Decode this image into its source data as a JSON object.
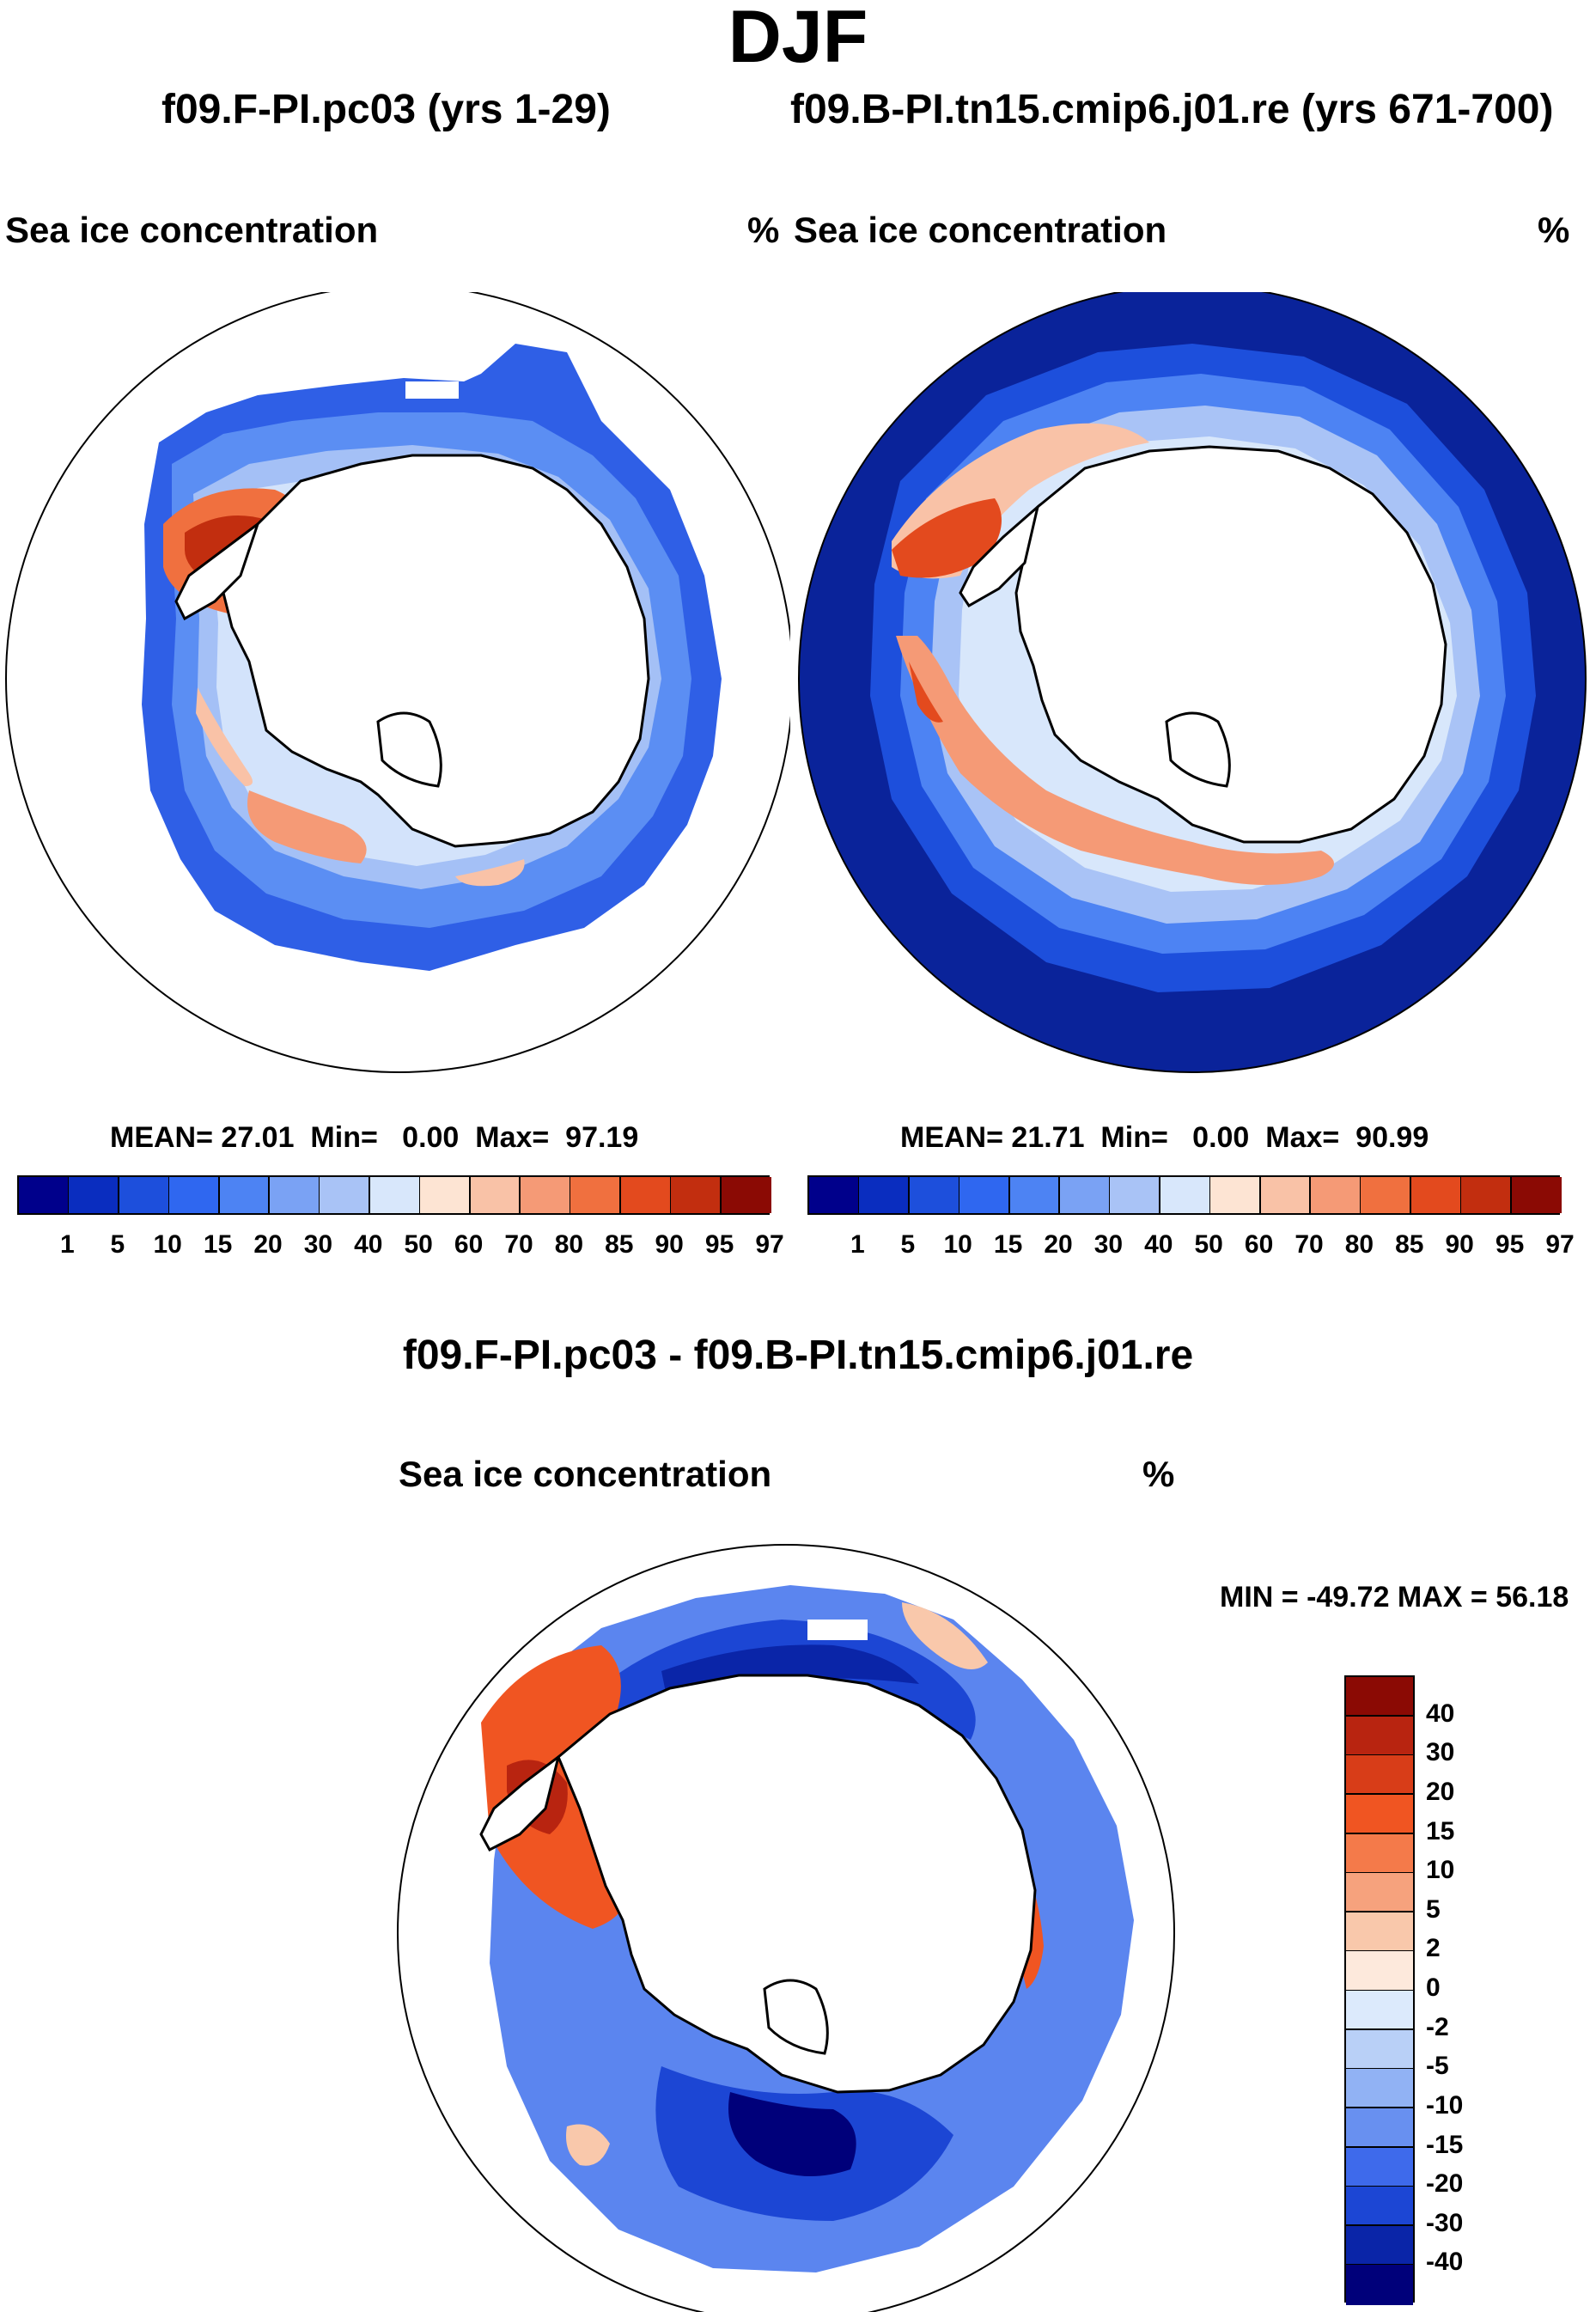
{
  "page": {
    "title": "DJF"
  },
  "panels": {
    "left": {
      "case_title": "f09.F-PI.pc03 (yrs 1-29)",
      "variable": "Sea ice concentration",
      "units": "%",
      "mean_label": "MEAN=",
      "mean": "27.01",
      "min_label": "Min=",
      "min": "0.00",
      "max_label": "Max=",
      "max": "97.19"
    },
    "right": {
      "case_title": "f09.B-PI.tn15.cmip6.j01.re (yrs 671-700)",
      "variable": "Sea ice concentration",
      "units": "%",
      "mean_label": "MEAN=",
      "mean": "21.71",
      "min_label": "Min=",
      "min": "0.00",
      "max_label": "Max=",
      "max": "90.99"
    },
    "diff": {
      "case_title": "f09.F-PI.pc03 - f09.B-PI.tn15.cmip6.j01.re",
      "variable": "Sea ice concentration",
      "units": "%",
      "minmax_text": "MIN = -49.72 MAX =  56.18"
    }
  },
  "chart_data": [
    {
      "type": "heatmap",
      "projection": "south polar stereographic",
      "title": "f09.F-PI.pc03 (yrs 1-29)",
      "variable": "Sea ice concentration",
      "units": "%",
      "stats": {
        "mean": 27.01,
        "min": 0.0,
        "max": 97.19
      },
      "colorbar": {
        "orientation": "horizontal",
        "levels": [
          1,
          5,
          10,
          15,
          20,
          30,
          40,
          50,
          60,
          70,
          80,
          85,
          90,
          95,
          97
        ],
        "colors": [
          "#00008b",
          "#0a2dbf",
          "#1d4fdc",
          "#2f67f0",
          "#4d83f3",
          "#7aa2f4",
          "#a9c3f6",
          "#d8e7fb",
          "#fde4d3",
          "#f9c2a7",
          "#f59a76",
          "#f0703f",
          "#e34a1e",
          "#c22e0f",
          "#8b0a04"
        ]
      }
    },
    {
      "type": "heatmap",
      "projection": "south polar stereographic",
      "title": "f09.B-PI.tn15.cmip6.j01.re (yrs 671-700)",
      "variable": "Sea ice concentration",
      "units": "%",
      "stats": {
        "mean": 21.71,
        "min": 0.0,
        "max": 90.99
      },
      "colorbar": {
        "orientation": "horizontal",
        "levels": [
          1,
          5,
          10,
          15,
          20,
          30,
          40,
          50,
          60,
          70,
          80,
          85,
          90,
          95,
          97
        ],
        "colors": [
          "#00008b",
          "#0a2dbf",
          "#1d4fdc",
          "#2f67f0",
          "#4d83f3",
          "#7aa2f4",
          "#a9c3f6",
          "#d8e7fb",
          "#fde4d3",
          "#f9c2a7",
          "#f59a76",
          "#f0703f",
          "#e34a1e",
          "#c22e0f",
          "#8b0a04"
        ]
      }
    },
    {
      "type": "heatmap",
      "projection": "south polar stereographic",
      "title": "f09.F-PI.pc03 - f09.B-PI.tn15.cmip6.j01.re",
      "variable": "Sea ice concentration",
      "units": "%",
      "stats": {
        "min": -49.72,
        "max": 56.18
      },
      "colorbar": {
        "orientation": "vertical",
        "levels": [
          40,
          30,
          20,
          15,
          10,
          5,
          2,
          0,
          -2,
          -5,
          -10,
          -15,
          -20,
          -30,
          -40
        ],
        "colors": [
          "#8b0a04",
          "#b82410",
          "#d83d18",
          "#f05522",
          "#f47a4a",
          "#f6a27d",
          "#f9c8ab",
          "#fde9dc",
          "#dceafc",
          "#b9d0f7",
          "#91b2f4",
          "#6890f0",
          "#3e6aeb",
          "#1c46d4",
          "#0a25a8",
          "#00007a"
        ]
      }
    }
  ]
}
